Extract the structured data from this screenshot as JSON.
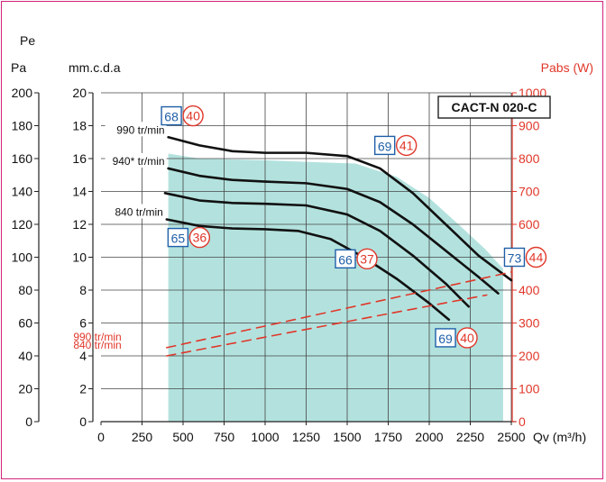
{
  "chart_data": {
    "type": "line",
    "title": "CACT-N 020-C",
    "x_axis": {
      "label": "Qv (m³/h)",
      "range": [
        0,
        2500
      ],
      "ticks": [
        "0",
        "250",
        "500",
        "750",
        "1000",
        "1250",
        "1500",
        "1750",
        "2000",
        "2250",
        "2500"
      ],
      "tick_values": [
        0,
        250,
        500,
        750,
        1000,
        1250,
        1500,
        1750,
        2000,
        2250,
        2500
      ]
    },
    "y_axis_pa": {
      "label": "Pa",
      "range": [
        0,
        200
      ],
      "ticks": [
        "0",
        "20",
        "40",
        "60",
        "80",
        "100",
        "120",
        "140",
        "160",
        "180",
        "200"
      ]
    },
    "y_axis_mmcda": {
      "label": "mm.c.d.a",
      "range": [
        0,
        20
      ],
      "ticks": [
        "0",
        "2",
        "4",
        "6",
        "8",
        "10",
        "12",
        "14",
        "16",
        "18",
        "20"
      ]
    },
    "y_axis_pabs": {
      "label": "Pabs (W)",
      "range": [
        0,
        1000
      ],
      "ticks": [
        "0",
        "100",
        "200",
        "300",
        "400",
        "500",
        "600",
        "700",
        "800",
        "900",
        "1000"
      ]
    },
    "pe_label": "Pe",
    "operating_zone": {
      "color": "#b3e2de",
      "points": [
        [
          410,
          16.3
        ],
        [
          600,
          16.0
        ],
        [
          1000,
          15.9
        ],
        [
          1250,
          15.8
        ],
        [
          1550,
          15.7
        ],
        [
          1800,
          14.9
        ],
        [
          2000,
          13.6
        ],
        [
          2200,
          11.8
        ],
        [
          2340,
          10.5
        ],
        [
          2450,
          9.3
        ],
        [
          2450,
          0
        ],
        [
          410,
          0
        ]
      ]
    },
    "series": [
      {
        "name": "990 tr/min",
        "kind": "pressure",
        "color": "#111111",
        "points": [
          [
            410,
            17.3
          ],
          [
            600,
            16.8
          ],
          [
            800,
            16.45
          ],
          [
            1000,
            16.35
          ],
          [
            1250,
            16.35
          ],
          [
            1500,
            16.15
          ],
          [
            1700,
            15.4
          ],
          [
            1900,
            13.9
          ],
          [
            2100,
            12.0
          ],
          [
            2300,
            10.1
          ],
          [
            2500,
            8.6
          ]
        ]
      },
      {
        "name": "940* tr/min",
        "kind": "pressure",
        "color": "#111111",
        "points": [
          [
            410,
            15.4
          ],
          [
            600,
            14.95
          ],
          [
            800,
            14.7
          ],
          [
            1000,
            14.6
          ],
          [
            1250,
            14.5
          ],
          [
            1500,
            14.15
          ],
          [
            1700,
            13.35
          ],
          [
            1900,
            12.0
          ],
          [
            2100,
            10.4
          ],
          [
            2300,
            8.8
          ],
          [
            2420,
            7.8
          ]
        ]
      },
      {
        "name": "",
        "kind": "pressure",
        "color": "#111111",
        "points": [
          [
            390,
            13.9
          ],
          [
            600,
            13.45
          ],
          [
            800,
            13.3
          ],
          [
            1000,
            13.25
          ],
          [
            1250,
            13.15
          ],
          [
            1500,
            12.6
          ],
          [
            1700,
            11.6
          ],
          [
            1900,
            10.1
          ],
          [
            2100,
            8.4
          ],
          [
            2240,
            7.0
          ]
        ]
      },
      {
        "name": "840 tr/min",
        "kind": "pressure",
        "color": "#111111",
        "points": [
          [
            400,
            12.3
          ],
          [
            600,
            11.9
          ],
          [
            800,
            11.75
          ],
          [
            1000,
            11.7
          ],
          [
            1200,
            11.6
          ],
          [
            1400,
            11.1
          ],
          [
            1600,
            10.0
          ],
          [
            1800,
            8.7
          ],
          [
            2000,
            7.2
          ],
          [
            2120,
            6.2
          ]
        ]
      },
      {
        "name": "990 tr/min",
        "kind": "power",
        "color": "#e0372a",
        "points": [
          [
            400,
            225
          ],
          [
            2500,
            455
          ]
        ]
      },
      {
        "name": "840 tr/min",
        "kind": "power",
        "color": "#e0372a",
        "points": [
          [
            400,
            200
          ],
          [
            2350,
            385
          ]
        ]
      }
    ],
    "noise_badges": [
      {
        "blue": "68",
        "red": "40",
        "x": 440,
        "y": 18.6
      },
      {
        "blue": "69",
        "red": "41",
        "x": 1740,
        "y": 16.8
      },
      {
        "blue": "65",
        "red": "36",
        "x": 480,
        "y": 11.2
      },
      {
        "blue": "66",
        "red": "37",
        "x": 1500,
        "y": 9.9
      },
      {
        "blue": "69",
        "red": "40",
        "x": 2110,
        "y": 5.1
      },
      {
        "blue": "73",
        "red": "44",
        "x": 2530,
        "y": 10.0
      }
    ],
    "grid": true,
    "legend": "none"
  }
}
